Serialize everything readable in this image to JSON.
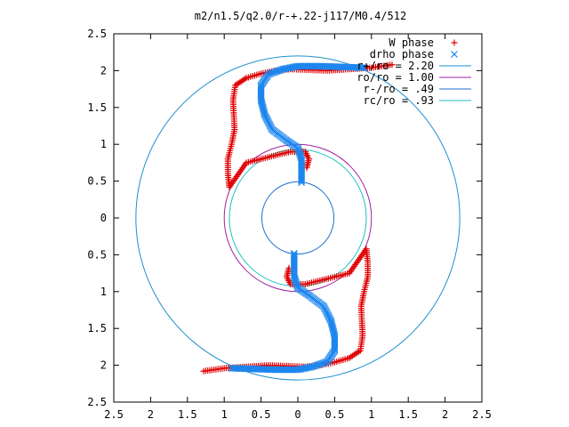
{
  "chart_data": {
    "type": "scatter",
    "title": "m2/n1.5/q2.0/r-+.22-j117/M0.4/512",
    "xlim": [
      -2.5,
      2.5
    ],
    "ylim": [
      -2.5,
      2.5
    ],
    "x_ticks": [
      {
        "value": -2.5,
        "label": "2.5"
      },
      {
        "value": -2,
        "label": "2"
      },
      {
        "value": -1.5,
        "label": "1.5"
      },
      {
        "value": -1,
        "label": "1"
      },
      {
        "value": -0.5,
        "label": "0.5"
      },
      {
        "value": 0,
        "label": "0"
      },
      {
        "value": 0.5,
        "label": "0.5"
      },
      {
        "value": 1,
        "label": "1"
      },
      {
        "value": 1.5,
        "label": "1.5"
      },
      {
        "value": 2,
        "label": "2"
      },
      {
        "value": 2.5,
        "label": "2.5"
      }
    ],
    "y_ticks": [
      {
        "value": 2.5,
        "label": "2.5"
      },
      {
        "value": 2,
        "label": "2"
      },
      {
        "value": 1.5,
        "label": "1.5"
      },
      {
        "value": 1,
        "label": "1"
      },
      {
        "value": 0.5,
        "label": "0.5"
      },
      {
        "value": 0,
        "label": "0"
      },
      {
        "value": -0.5,
        "label": "0.5"
      },
      {
        "value": -1,
        "label": "1"
      },
      {
        "value": -1.5,
        "label": "1.5"
      },
      {
        "value": -2,
        "label": "2"
      },
      {
        "value": -2.5,
        "label": "2.5"
      }
    ],
    "legend_position": "top-right",
    "circles": [
      {
        "label": "r+/ro = 2.20",
        "r": 2.2,
        "color": "#1f8fd0"
      },
      {
        "label": "ro/ro = 1.00",
        "r": 1.0,
        "color": "#a020a0"
      },
      {
        "label": "r-/ro = .49",
        "r": 0.49,
        "color": "#1f6fd0"
      },
      {
        "label": "rc/ro = .93",
        "r": 0.93,
        "color": "#20c0c0"
      }
    ],
    "series": [
      {
        "name": "W phase",
        "marker": "plus",
        "color": "#e00000",
        "arm_upper": [
          [
            1.28,
            2.08
          ],
          [
            1.0,
            2.04
          ],
          [
            0.7,
            2.02
          ],
          [
            0.4,
            2.0
          ],
          [
            0.15,
            2.01
          ],
          [
            -0.1,
            2.02
          ],
          [
            -0.3,
            2.0
          ],
          [
            -0.5,
            1.96
          ],
          [
            -0.7,
            1.9
          ],
          [
            -0.85,
            1.8
          ],
          [
            -0.88,
            1.6
          ],
          [
            -0.87,
            1.4
          ],
          [
            -0.86,
            1.2
          ],
          [
            -0.9,
            1.0
          ],
          [
            -0.95,
            0.8
          ],
          [
            -0.95,
            0.6
          ],
          [
            -0.93,
            0.42
          ],
          [
            -0.7,
            0.75
          ],
          [
            -0.5,
            0.8
          ],
          [
            -0.3,
            0.85
          ],
          [
            -0.1,
            0.9
          ],
          [
            0.1,
            0.9
          ],
          [
            0.15,
            0.8
          ],
          [
            0.12,
            0.68
          ]
        ],
        "arm_lower": [
          [
            -1.28,
            -2.08
          ],
          [
            -1.0,
            -2.04
          ],
          [
            -0.7,
            -2.02
          ],
          [
            -0.4,
            -2.0
          ],
          [
            -0.15,
            -2.01
          ],
          [
            0.1,
            -2.02
          ],
          [
            0.3,
            -2.0
          ],
          [
            0.5,
            -1.96
          ],
          [
            0.7,
            -1.9
          ],
          [
            0.85,
            -1.8
          ],
          [
            0.88,
            -1.6
          ],
          [
            0.87,
            -1.4
          ],
          [
            0.86,
            -1.2
          ],
          [
            0.9,
            -1.0
          ],
          [
            0.95,
            -0.8
          ],
          [
            0.95,
            -0.6
          ],
          [
            0.93,
            -0.42
          ],
          [
            0.7,
            -0.75
          ],
          [
            0.5,
            -0.8
          ],
          [
            0.3,
            -0.85
          ],
          [
            0.1,
            -0.9
          ],
          [
            -0.1,
            -0.9
          ],
          [
            -0.15,
            -0.8
          ],
          [
            -0.12,
            -0.68
          ]
        ]
      },
      {
        "name": "drho phase",
        "marker": "cross",
        "color": "#1c86ee",
        "arm_upper": [
          [
            0.9,
            2.04
          ],
          [
            0.6,
            2.05
          ],
          [
            0.3,
            2.06
          ],
          [
            0.0,
            2.06
          ],
          [
            -0.2,
            2.02
          ],
          [
            -0.4,
            1.95
          ],
          [
            -0.5,
            1.8
          ],
          [
            -0.5,
            1.6
          ],
          [
            -0.45,
            1.4
          ],
          [
            -0.35,
            1.2
          ],
          [
            -0.15,
            1.05
          ],
          [
            0.0,
            0.95
          ],
          [
            0.05,
            0.8
          ],
          [
            0.05,
            0.6
          ],
          [
            0.05,
            0.48
          ]
        ],
        "arm_lower": [
          [
            -0.9,
            -2.04
          ],
          [
            -0.6,
            -2.05
          ],
          [
            -0.3,
            -2.06
          ],
          [
            0.0,
            -2.06
          ],
          [
            0.2,
            -2.02
          ],
          [
            0.4,
            -1.95
          ],
          [
            0.5,
            -1.8
          ],
          [
            0.5,
            -1.6
          ],
          [
            0.45,
            -1.4
          ],
          [
            0.35,
            -1.2
          ],
          [
            0.15,
            -1.05
          ],
          [
            0.0,
            -0.95
          ],
          [
            -0.05,
            -0.8
          ],
          [
            -0.05,
            -0.6
          ],
          [
            -0.05,
            -0.48
          ]
        ]
      }
    ]
  }
}
